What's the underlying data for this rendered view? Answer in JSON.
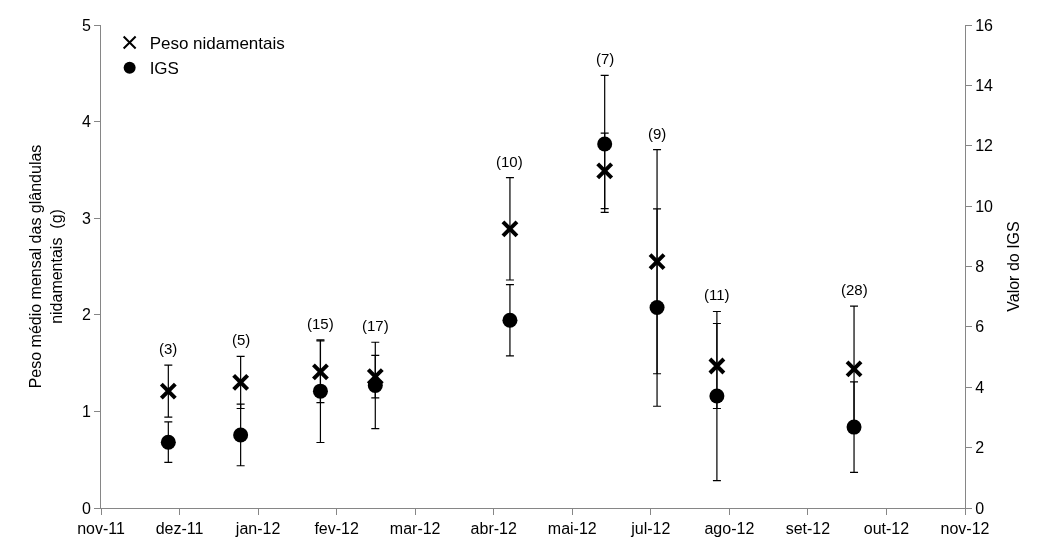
{
  "chart_data": {
    "type": "scatter",
    "ylabel": "Peso médio mensal das glândulas\nnidamentais  (g)",
    "y2label": "Valor do IGS",
    "x": [
      "2011-12-21",
      "2012-01-19",
      "2012-02-20",
      "2012-03-13",
      "2012-05-06",
      "2012-06-13",
      "2012-07-04",
      "2012-07-28",
      "2012-09-21"
    ],
    "series": [
      {
        "name": "Peso nidamentais",
        "color": "#000000",
        "marker": "cross",
        "values": [
          1.21,
          1.3,
          1.41,
          1.36,
          2.89,
          3.49,
          2.55,
          1.47,
          1.44
        ],
        "errors": [
          0.27,
          0.27,
          0.32,
          0.22,
          0.53,
          0.39,
          1.16,
          0.44,
          0.65
        ]
      },
      {
        "name": "IGS",
        "color": "#000000",
        "marker": "circle",
        "axis": "y2",
        "values": [
          2.18,
          2.42,
          3.87,
          4.06,
          6.22,
          12.06,
          6.64,
          3.71,
          2.68
        ],
        "errors": [
          0.67,
          1.02,
          1.7,
          1.43,
          1.18,
          2.27,
          3.27,
          2.8,
          1.5
        ]
      }
    ],
    "xlim": [
      "2011-11-24",
      "2012-11-04T12:00"
    ],
    "xticks": [
      {
        "value": "2011-11-24",
        "label": "nov-11"
      },
      {
        "value": "2011-12-25T12:00",
        "label": "dez-11"
      },
      {
        "value": "2012-01-26",
        "label": "jan-12"
      },
      {
        "value": "2012-02-26T12:00",
        "label": "fev-12"
      },
      {
        "value": "2012-03-29",
        "label": "mar-12"
      },
      {
        "value": "2012-04-29T12:00",
        "label": "abr-12"
      },
      {
        "value": "2012-05-31",
        "label": "mai-12"
      },
      {
        "value": "2012-07-01T12:00",
        "label": "jul-12"
      },
      {
        "value": "2012-08-02",
        "label": "ago-12"
      },
      {
        "value": "2012-09-02T12:00",
        "label": "set-12"
      },
      {
        "value": "2012-10-04",
        "label": "out-12"
      },
      {
        "value": "2012-11-04T12:00",
        "label": "nov-12"
      }
    ],
    "ylim": [
      0,
      5
    ],
    "yticks": [
      0,
      1,
      2,
      3,
      4,
      5
    ],
    "y2lim": [
      0,
      16
    ],
    "y2ticks": [
      0,
      2,
      4,
      6,
      8,
      10,
      12,
      14,
      16
    ],
    "annotations": [
      "(3)",
      "(5)",
      "(15)",
      "(17)",
      "(10)",
      "(7)",
      "(9)",
      "(11)",
      "(28)"
    ],
    "legend": "top left"
  }
}
